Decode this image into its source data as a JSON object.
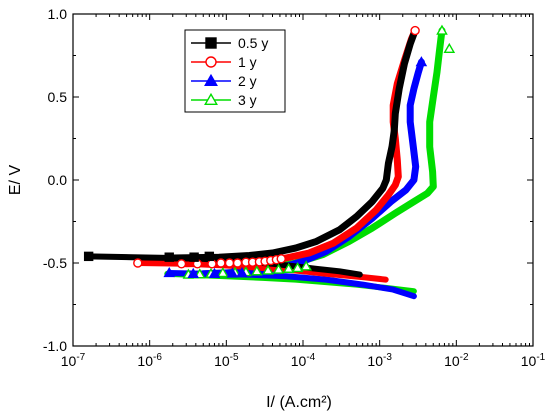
{
  "chart_data": {
    "type": "line",
    "xlabel": "I/ (A.cm²)",
    "ylabel": "E/ V",
    "xscale": "log",
    "xlim": [
      1e-07,
      0.1
    ],
    "ylim": [
      -1.0,
      1.0
    ],
    "x_ticks": [
      {
        "value": 1e-07,
        "base": "10",
        "exp": "-7"
      },
      {
        "value": 1e-06,
        "base": "10",
        "exp": "-6"
      },
      {
        "value": 1e-05,
        "base": "10",
        "exp": "-5"
      },
      {
        "value": 0.0001,
        "base": "10",
        "exp": "-4"
      },
      {
        "value": 0.001,
        "base": "10",
        "exp": "-3"
      },
      {
        "value": 0.01,
        "base": "10",
        "exp": "-2"
      },
      {
        "value": 0.1,
        "base": "10",
        "exp": "-1"
      }
    ],
    "y_ticks": [
      {
        "value": -1.0,
        "label": "-1.0"
      },
      {
        "value": -0.5,
        "label": "-0.5"
      },
      {
        "value": 0.0,
        "label": "0.0"
      },
      {
        "value": 0.5,
        "label": "0.5"
      },
      {
        "value": 1.0,
        "label": "1.0"
      }
    ],
    "legend_position": "top-left",
    "series": [
      {
        "name": "0.5 y",
        "color": "#000000",
        "marker": "square",
        "filled": true,
        "cathodic": [
          [
            0.00055,
            -0.57
          ],
          [
            0.0003,
            -0.55
          ],
          [
            0.00015,
            -0.535
          ],
          [
            8e-05,
            -0.52
          ],
          [
            4e-05,
            -0.505
          ],
          [
            1.5e-05,
            -0.49
          ],
          [
            5e-06,
            -0.475
          ],
          [
            2e-06,
            -0.47
          ],
          [
            6e-07,
            -0.465
          ],
          [
            1.6e-07,
            -0.46
          ]
        ],
        "anodic": [
          [
            2e-06,
            -0.47
          ],
          [
            8e-06,
            -0.465
          ],
          [
            2e-05,
            -0.455
          ],
          [
            4e-05,
            -0.44
          ],
          [
            8e-05,
            -0.41
          ],
          [
            0.00015,
            -0.37
          ],
          [
            0.0003,
            -0.3
          ],
          [
            0.0005,
            -0.22
          ],
          [
            0.0008,
            -0.13
          ],
          [
            0.0011,
            -0.05
          ],
          [
            0.00122,
            0.0
          ],
          [
            0.0013,
            0.1
          ],
          [
            0.00145,
            0.2
          ],
          [
            0.00155,
            0.3
          ],
          [
            0.0016,
            0.4
          ],
          [
            0.0018,
            0.55
          ],
          [
            0.0021,
            0.7
          ],
          [
            0.0025,
            0.82
          ],
          [
            0.0029,
            0.9
          ]
        ],
        "markers": [
          [
            1.6e-07,
            -0.46
          ],
          [
            1.8e-06,
            -0.465
          ],
          [
            3.8e-06,
            -0.465
          ],
          [
            6e-06,
            -0.46
          ]
        ]
      },
      {
        "name": "1 y",
        "color": "#ff0000",
        "marker": "circle",
        "filled": false,
        "cathodic": [
          [
            0.0012,
            -0.6
          ],
          [
            0.0006,
            -0.585
          ],
          [
            0.0002,
            -0.565
          ],
          [
            8e-05,
            -0.545
          ],
          [
            3e-05,
            -0.53
          ],
          [
            1e-05,
            -0.515
          ],
          [
            3e-06,
            -0.505
          ],
          [
            7e-07,
            -0.5
          ]
        ],
        "anodic": [
          [
            3e-06,
            -0.505
          ],
          [
            1e-05,
            -0.5
          ],
          [
            3e-05,
            -0.49
          ],
          [
            6e-05,
            -0.47
          ],
          [
            0.00012,
            -0.44
          ],
          [
            0.00025,
            -0.38
          ],
          [
            0.0005,
            -0.29
          ],
          [
            0.0009,
            -0.18
          ],
          [
            0.0013,
            -0.09
          ],
          [
            0.0016,
            -0.03
          ],
          [
            0.00175,
            0.02
          ],
          [
            0.0017,
            0.12
          ],
          [
            0.0016,
            0.25
          ],
          [
            0.0015,
            0.35
          ],
          [
            0.0015,
            0.45
          ],
          [
            0.0017,
            0.58
          ],
          [
            0.0021,
            0.72
          ],
          [
            0.0026,
            0.85
          ],
          [
            0.0029,
            0.9
          ]
        ],
        "markers": [
          [
            7e-07,
            -0.5
          ],
          [
            2.6e-06,
            -0.505
          ],
          [
            4.2e-06,
            -0.505
          ],
          [
            6.5e-06,
            -0.505
          ],
          [
            8.5e-06,
            -0.5
          ],
          [
            1.1e-05,
            -0.5
          ],
          [
            1.4e-05,
            -0.5
          ],
          [
            1.8e-05,
            -0.495
          ],
          [
            2.2e-05,
            -0.495
          ],
          [
            2.7e-05,
            -0.493
          ],
          [
            3.2e-05,
            -0.49
          ],
          [
            3.8e-05,
            -0.485
          ],
          [
            4.5e-05,
            -0.48
          ],
          [
            5.2e-05,
            -0.475
          ],
          [
            0.0029,
            0.9
          ]
        ]
      },
      {
        "name": "2 y",
        "color": "#0000ff",
        "marker": "triangle",
        "filled": true,
        "cathodic": [
          [
            0.0028,
            -0.7
          ],
          [
            0.0015,
            -0.66
          ],
          [
            0.0006,
            -0.63
          ],
          [
            0.0002,
            -0.6
          ],
          [
            6e-05,
            -0.58
          ],
          [
            2e-05,
            -0.57
          ],
          [
            5e-06,
            -0.565
          ],
          [
            1.8e-06,
            -0.56
          ]
        ],
        "anodic": [
          [
            5e-06,
            -0.565
          ],
          [
            2e-05,
            -0.555
          ],
          [
            5e-05,
            -0.53
          ],
          [
            0.0001,
            -0.49
          ],
          [
            0.0002,
            -0.43
          ],
          [
            0.0004,
            -0.34
          ],
          [
            0.0008,
            -0.23
          ],
          [
            0.0014,
            -0.13
          ],
          [
            0.0022,
            -0.06
          ],
          [
            0.0028,
            0.0
          ],
          [
            0.00295,
            0.08
          ],
          [
            0.00275,
            0.2
          ],
          [
            0.0025,
            0.35
          ],
          [
            0.0025,
            0.45
          ],
          [
            0.0028,
            0.55
          ],
          [
            0.0032,
            0.65
          ],
          [
            0.0035,
            0.71
          ]
        ],
        "markers": [
          [
            1.8e-06,
            -0.56
          ],
          [
            3.7e-06,
            -0.565
          ],
          [
            7e-06,
            -0.565
          ],
          [
            1.2e-05,
            -0.563
          ],
          [
            1.6e-05,
            -0.56
          ],
          [
            0.0035,
            0.71
          ]
        ]
      },
      {
        "name": "3 y",
        "color": "#00dd00",
        "marker": "triangle",
        "filled": false,
        "cathodic": [
          [
            0.0028,
            -0.67
          ],
          [
            0.0012,
            -0.65
          ],
          [
            0.0005,
            -0.63
          ],
          [
            0.0002,
            -0.615
          ],
          [
            8e-05,
            -0.6
          ],
          [
            3e-05,
            -0.59
          ],
          [
            1e-05,
            -0.58
          ],
          [
            3e-06,
            -0.57
          ],
          [
            1.7e-06,
            -0.565
          ]
        ],
        "anodic": [
          [
            3e-06,
            -0.57
          ],
          [
            1e-05,
            -0.56
          ],
          [
            3e-05,
            -0.54
          ],
          [
            8e-05,
            -0.5
          ],
          [
            0.00018,
            -0.45
          ],
          [
            0.0004,
            -0.37
          ],
          [
            0.0008,
            -0.29
          ],
          [
            0.0016,
            -0.2
          ],
          [
            0.0028,
            -0.13
          ],
          [
            0.0042,
            -0.08
          ],
          [
            0.005,
            -0.04
          ],
          [
            0.0049,
            0.05
          ],
          [
            0.0045,
            0.2
          ],
          [
            0.0045,
            0.35
          ],
          [
            0.005,
            0.5
          ],
          [
            0.0056,
            0.65
          ],
          [
            0.006,
            0.77
          ],
          [
            0.0063,
            0.85
          ],
          [
            0.0065,
            0.9
          ]
        ],
        "markers": [
          [
            3.2e-06,
            -0.57
          ],
          [
            4.5e-06,
            -0.568
          ],
          [
            6.3e-06,
            -0.565
          ],
          [
            9e-06,
            -0.56
          ],
          [
            1.3e-05,
            -0.558
          ],
          [
            1.8e-05,
            -0.555
          ],
          [
            2.5e-05,
            -0.55
          ],
          [
            3.5e-05,
            -0.545
          ],
          [
            4.8e-05,
            -0.54
          ],
          [
            6.5e-05,
            -0.535
          ],
          [
            8.5e-05,
            -0.53
          ],
          [
            0.00011,
            -0.52
          ],
          [
            0.0065,
            0.9
          ],
          [
            0.0081,
            0.79
          ]
        ]
      }
    ]
  }
}
